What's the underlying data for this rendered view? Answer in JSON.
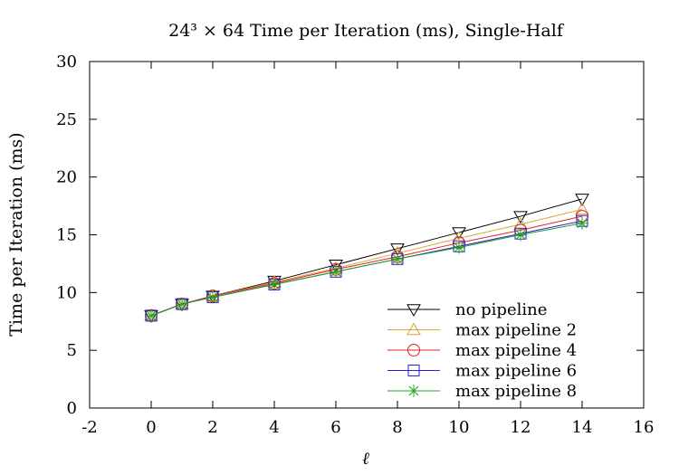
{
  "chart_data": {
    "type": "line",
    "title": "24³ × 64 Time per Iteration (ms), Single-Half",
    "xlabel": "ℓ",
    "ylabel": "Time per Iteration (ms)",
    "xlim": [
      -2,
      16
    ],
    "ylim": [
      0,
      30
    ],
    "xticks": [
      -2,
      0,
      2,
      4,
      6,
      8,
      10,
      12,
      14,
      16
    ],
    "yticks": [
      0,
      5,
      10,
      15,
      20,
      25,
      30
    ],
    "grid": false,
    "legend_position": "bottom-right",
    "x": [
      0,
      1,
      2,
      4,
      6,
      8,
      10,
      12,
      14
    ],
    "series": [
      {
        "name": "no pipeline",
        "marker": "triangle-down",
        "color": "#000000",
        "values": [
          8.0,
          9.0,
          9.7,
          11.0,
          12.4,
          13.8,
          15.2,
          16.6,
          18.1
        ]
      },
      {
        "name": "max pipeline 2",
        "marker": "triangle-up",
        "color": "#d9a43a",
        "values": [
          8.0,
          9.0,
          9.7,
          10.9,
          12.1,
          13.4,
          14.7,
          15.9,
          17.2
        ]
      },
      {
        "name": "max pipeline 4",
        "marker": "circle",
        "color": "#e02020",
        "values": [
          8.0,
          9.0,
          9.7,
          10.8,
          12.0,
          13.1,
          14.3,
          15.4,
          16.6
        ]
      },
      {
        "name": "max pipeline 6",
        "marker": "square",
        "color": "#2222cc",
        "values": [
          8.0,
          9.0,
          9.6,
          10.7,
          11.8,
          12.9,
          14.0,
          15.1,
          16.2
        ]
      },
      {
        "name": "max pipeline 8",
        "marker": "star",
        "color": "#20a020",
        "values": [
          8.0,
          9.0,
          9.6,
          10.7,
          11.8,
          12.9,
          13.9,
          15.0,
          16.0
        ]
      }
    ]
  }
}
